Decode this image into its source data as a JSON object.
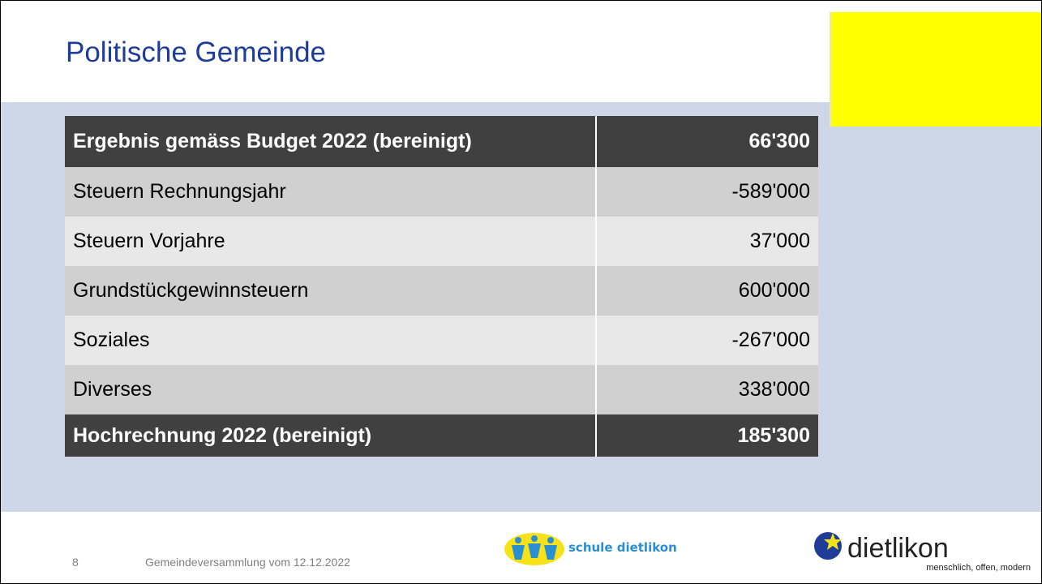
{
  "slide": {
    "title": "Politische Gemeinde"
  },
  "table": {
    "header": [
      "Ergebnis gemäss Budget 2022 (bereinigt)",
      "66'300"
    ],
    "rows": [
      [
        "Steuern Rechnungsjahr",
        "-589'000"
      ],
      [
        "Steuern Vorjahre",
        "37'000"
      ],
      [
        "Grundstückgewinnsteuern",
        "600'000"
      ],
      [
        "Soziales",
        "-267'000"
      ],
      [
        "Diverses",
        "338'000"
      ]
    ],
    "total": [
      "Hochrechnung 2022 (bereinigt)",
      "185'300"
    ]
  },
  "footer": {
    "page": "8",
    "text": "Gemeindeversammlung vom 12.12.2022"
  },
  "logos": {
    "school": "schule dietlikon",
    "town": "dietlikon",
    "tagline": "menschlich, offen, modern"
  }
}
